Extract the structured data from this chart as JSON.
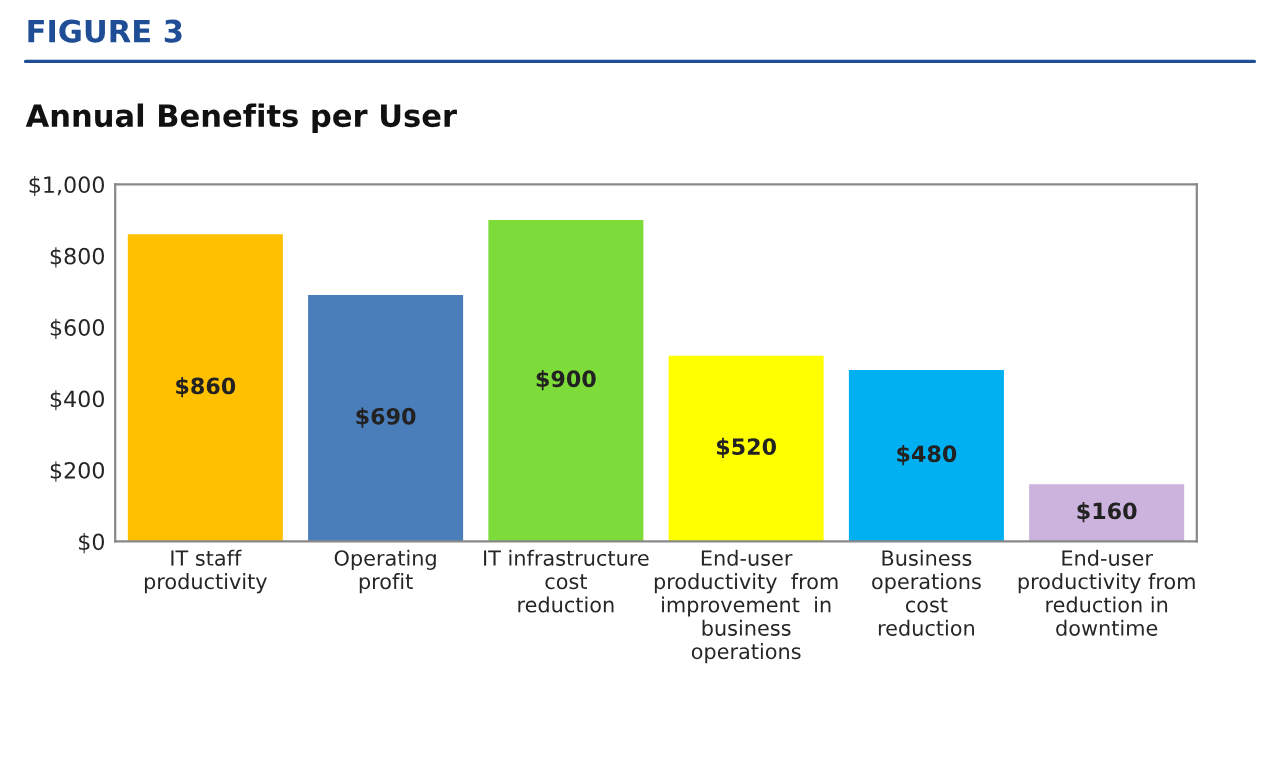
{
  "chart_data": {
    "type": "bar",
    "title": "FIGURE 3",
    "subtitle": "Annual Benefits per User",
    "categories": [
      "IT staff\nproductivity",
      "Operating\nprofit",
      "IT infrastructure\ncost\nreduction",
      "End-user\nproductivity  from\nimprovement  in\nbusiness\noperations",
      "Business\noperations\ncost\nreduction",
      "End-user\nproductivity from\nreduction in\ndowntime"
    ],
    "values": [
      860,
      690,
      900,
      520,
      480,
      160
    ],
    "colors": [
      "#ffc000",
      "#4a7ebb",
      "#7ddb3a",
      "#ffff00",
      "#00b0f0",
      "#ccb3dd"
    ],
    "value_labels": [
      "$860",
      "$690",
      "$900",
      "$520",
      "$480",
      "$160"
    ],
    "ylim": [
      0,
      1000
    ],
    "yticks": [
      {
        "value": 0,
        "label": "$0"
      },
      {
        "value": 200,
        "label": "$200"
      },
      {
        "value": 400,
        "label": "$400"
      },
      {
        "value": 600,
        "label": "$600"
      },
      {
        "value": 800,
        "label": "$800"
      },
      {
        "value": 1000,
        "label": "$1,000"
      }
    ],
    "grid": false,
    "legend": false
  }
}
